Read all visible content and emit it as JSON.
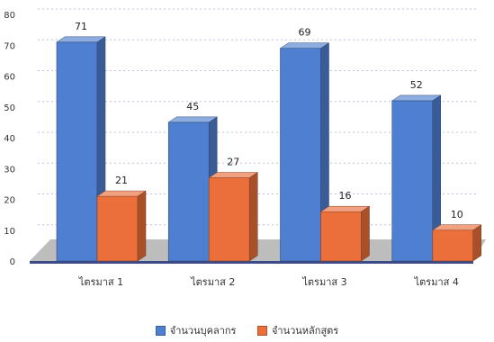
{
  "chart_data": {
    "type": "bar",
    "categories": [
      "ไตรมาส 1",
      "ไตรมาส 2",
      "ไตรมาส 3",
      "ไตรมาส 4"
    ],
    "series": [
      {
        "name": "จำนวนบุคลากร",
        "values": [
          71,
          45,
          69,
          52
        ],
        "color": "#4f7fd0"
      },
      {
        "name": "จำนวนหลักสูตร",
        "values": [
          21,
          27,
          16,
          10
        ],
        "color": "#ea6f3b"
      }
    ],
    "ylim": [
      0,
      80
    ],
    "yticks": [
      "0",
      "10",
      "20",
      "30",
      "40",
      "50",
      "60",
      "70",
      "80"
    ],
    "grid": true,
    "legend_position": "bottom"
  }
}
